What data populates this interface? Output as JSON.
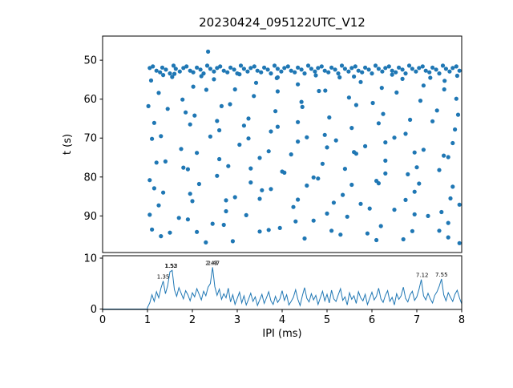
{
  "figure": {
    "title": "20230424_095122UTC_V12",
    "accent_color": "#1f77b4",
    "background_color": "#ffffff"
  },
  "chart_data": [
    {
      "type": "scatter",
      "title": "20230424_095122UTC_V12",
      "xlabel": "",
      "ylabel": "t (s)",
      "xlim": [
        0,
        8
      ],
      "ylim": [
        99.4,
        43.8
      ],
      "y_axis_inverted": true,
      "yticks": [
        50,
        60,
        70,
        80,
        90
      ],
      "xticks": [
        0,
        1,
        2,
        3,
        4,
        5,
        6,
        7,
        8
      ],
      "grid": false,
      "marker_color": "#1f77b4",
      "x": [
        1.05,
        1.12,
        1.2,
        1.28,
        1.33,
        1.41,
        1.5,
        1.58,
        1.63,
        1.72,
        1.8,
        1.87,
        1.95,
        2.02,
        2.1,
        2.18,
        2.25,
        2.33,
        2.4,
        2.48,
        2.55,
        2.62,
        2.7,
        2.78,
        2.85,
        2.93,
        3.0,
        3.08,
        3.15,
        3.23,
        3.3,
        3.38,
        3.45,
        3.53,
        3.6,
        3.68,
        3.75,
        3.83,
        3.9,
        3.98,
        4.05,
        4.13,
        4.2,
        4.28,
        4.35,
        4.43,
        4.5,
        4.58,
        4.65,
        4.73,
        4.8,
        4.88,
        4.95,
        5.03,
        5.1,
        5.18,
        5.25,
        5.33,
        5.4,
        5.48,
        5.55,
        5.63,
        5.7,
        5.78,
        5.85,
        5.93,
        6.0,
        6.08,
        6.15,
        6.23,
        6.3,
        6.38,
        6.45,
        6.53,
        6.6,
        6.68,
        6.75,
        6.83,
        6.9,
        6.98,
        7.05,
        7.13,
        7.2,
        7.28,
        7.35,
        7.43,
        7.5,
        7.58,
        7.65,
        7.73,
        7.8,
        7.88,
        7.95,
        1.08,
        1.55,
        2.02,
        2.48,
        2.95,
        3.42,
        3.88,
        4.35,
        4.82,
        5.28,
        5.75,
        6.22,
        6.68,
        7.15,
        7.62,
        1.25,
        1.78,
        2.31,
        2.84,
        3.37,
        3.9,
        4.43,
        4.96,
        5.49,
        6.02,
        6.55,
        7.08,
        7.61,
        7.88,
        1.02,
        1.45,
        2.05,
        2.65,
        3.25,
        3.85,
        4.45,
        5.05,
        5.65,
        6.25,
        6.85,
        7.45,
        7.92,
        1.15,
        1.85,
        2.55,
        3.15,
        3.75,
        4.35,
        4.95,
        5.55,
        6.15,
        6.75,
        7.35,
        7.85,
        1.3,
        1.95,
        2.6,
        3.25,
        3.9,
        4.55,
        5.2,
        5.85,
        6.5,
        7.15,
        7.8,
        1.1,
        1.75,
        2.4,
        3.05,
        3.7,
        4.35,
        5.0,
        5.65,
        6.3,
        6.95,
        7.6,
        1.4,
        2.1,
        2.8,
        3.5,
        4.2,
        4.9,
        5.6,
        6.3,
        7.0,
        7.7,
        1.2,
        1.9,
        2.6,
        3.3,
        4.0,
        4.7,
        5.4,
        6.1,
        6.8,
        7.5,
        1.05,
        1.8,
        2.55,
        3.3,
        4.05,
        4.8,
        5.55,
        6.3,
        7.05,
        7.8,
        1.35,
        2.15,
        2.95,
        3.75,
        4.55,
        5.35,
        6.15,
        6.95,
        7.75,
        1.15,
        1.95,
        2.75,
        3.55,
        4.35,
        5.15,
        5.95,
        6.75,
        7.55,
        1.25,
        2.0,
        2.75,
        3.5,
        4.25,
        5.0,
        5.75,
        6.5,
        7.25,
        7.95,
        1.05,
        1.7,
        2.45,
        3.2,
        3.95,
        4.7,
        5.45,
        6.2,
        6.95,
        7.7,
        1.1,
        1.9,
        2.7,
        3.5,
        4.3,
        5.1,
        5.9,
        6.7,
        7.5,
        1.3,
        2.1,
        2.9,
        3.7,
        4.5,
        5.3,
        6.1,
        6.9,
        7.7,
        7.95,
        1.5,
        2.3,
        1.35,
        2.2,
        3.05,
        3.9,
        4.75,
        5.6,
        6.45,
        7.3,
        7.9,
        1.6,
        2.35
      ],
      "t": [
        52.0,
        51.6,
        52.7,
        53.1,
        51.9,
        52.4,
        53.4,
        51.4,
        52.2,
        52.9,
        52.0,
        51.6,
        52.7,
        53.1,
        51.9,
        52.4,
        53.4,
        51.4,
        52.2,
        52.9,
        52.0,
        51.6,
        52.7,
        53.1,
        51.9,
        52.4,
        53.4,
        51.4,
        52.2,
        52.9,
        52.0,
        51.6,
        52.7,
        53.1,
        51.9,
        52.4,
        53.4,
        51.4,
        52.2,
        52.9,
        52.0,
        51.6,
        52.7,
        53.1,
        51.9,
        52.4,
        53.4,
        51.4,
        52.2,
        52.9,
        52.0,
        51.6,
        52.7,
        53.1,
        51.9,
        52.4,
        53.4,
        51.4,
        52.2,
        52.9,
        52.0,
        51.6,
        52.7,
        53.1,
        51.9,
        52.4,
        53.4,
        51.4,
        52.2,
        52.9,
        52.0,
        51.6,
        52.7,
        53.1,
        51.9,
        52.4,
        53.4,
        51.4,
        52.2,
        52.9,
        52.0,
        51.6,
        52.7,
        53.1,
        51.9,
        52.4,
        53.4,
        51.4,
        52.2,
        52.9,
        52.0,
        51.6,
        52.7,
        55.2,
        54.3,
        56.8,
        54.9,
        57.5,
        55.8,
        54.6,
        56.2,
        57.9,
        54.4,
        55.6,
        57.1,
        54.8,
        56.5,
        55.3,
        58.4,
        60.1,
        57.6,
        61.3,
        59.2,
        58.0,
        60.7,
        57.8,
        59.6,
        61.0,
        58.3,
        60.4,
        57.5,
        59.9,
        61.8,
        62.5,
        64.2,
        61.8,
        65.0,
        63.1,
        62.0,
        64.7,
        61.5,
        63.8,
        65.3,
        62.9,
        64.0,
        66.1,
        63.4,
        65.6,
        66.8,
        68.3,
        65.9,
        69.2,
        67.4,
        66.2,
        68.9,
        65.7,
        67.8,
        69.5,
        66.5,
        68.0,
        70.1,
        67.1,
        69.8,
        70.6,
        72.1,
        69.9,
        73.0,
        71.3,
        70.2,
        72.8,
        69.6,
        71.7,
        73.4,
        70.9,
        72.4,
        74.0,
        71.1,
        73.7,
        74.5,
        76.0,
        73.8,
        77.2,
        75.1,
        74.2,
        76.6,
        73.6,
        75.8,
        77.5,
        74.9,
        76.3,
        78.0,
        75.4,
        77.8,
        78.6,
        80.1,
        77.9,
        81.0,
        79.3,
        78.2,
        80.8,
        77.6,
        79.7,
        81.4,
        78.9,
        80.4,
        82.0,
        79.1,
        81.7,
        82.5,
        84.0,
        81.8,
        85.2,
        83.1,
        82.2,
        84.6,
        81.6,
        83.8,
        85.5,
        82.9,
        84.3,
        86.0,
        83.4,
        85.8,
        86.6,
        88.1,
        85.9,
        89.0,
        87.3,
        86.2,
        88.8,
        85.6,
        87.7,
        89.4,
        86.9,
        88.4,
        90.0,
        87.1,
        89.7,
        90.5,
        92.0,
        89.8,
        93.1,
        91.2,
        90.2,
        92.6,
        89.6,
        91.8,
        93.5,
        90.9,
        92.3,
        94.0,
        91.4,
        93.8,
        94.5,
        96.0,
        93.8,
        95.2,
        94.1,
        96.5,
        93.6,
        95.8,
        94.8,
        96.2,
        93.9,
        95.5,
        97.0,
        94.3,
        96.8,
        53.8,
        54.1,
        53.6,
        54.4,
        53.9,
        54.2,
        53.7,
        54.5,
        54.0,
        53.5,
        47.8
      ]
    },
    {
      "type": "line",
      "title": "",
      "xlabel": "IPI (ms)",
      "ylabel": "",
      "xlim": [
        0,
        8
      ],
      "ylim": [
        0,
        10.2
      ],
      "yticks": [
        0,
        10
      ],
      "xticks": [
        0,
        1,
        2,
        3,
        4,
        5,
        6,
        7,
        8
      ],
      "grid": false,
      "line_color": "#1f77b4",
      "baseline_start_x": 0,
      "baseline_value": 0,
      "x0": 1.0,
      "dx": 0.05,
      "y": [
        0.3,
        1.2,
        2.8,
        1.5,
        3.4,
        2.2,
        4.1,
        5.5,
        3.0,
        4.6,
        7.3,
        7.6,
        3.8,
        2.5,
        4.2,
        3.1,
        2.0,
        3.6,
        2.8,
        1.6,
        3.2,
        2.4,
        4.0,
        2.9,
        1.8,
        3.5,
        2.6,
        4.3,
        5.0,
        8.2,
        4.4,
        2.7,
        3.9,
        1.9,
        3.0,
        2.2,
        4.1,
        1.4,
        2.8,
        0.9,
        2.1,
        3.3,
        1.2,
        2.6,
        0.8,
        1.9,
        3.1,
        1.5,
        2.4,
        0.7,
        1.8,
        2.9,
        1.1,
        2.2,
        3.4,
        1.6,
        0.9,
        2.5,
        1.3,
        2.0,
        3.6,
        1.7,
        2.8,
        0.8,
        1.5,
        2.3,
        3.8,
        1.9,
        0.7,
        2.6,
        4.2,
        2.1,
        1.4,
        3.0,
        1.8,
        2.7,
        0.9,
        2.2,
        3.5,
        1.6,
        2.9,
        1.2,
        3.7,
        2.0,
        1.5,
        2.8,
        4.0,
        1.7,
        2.4,
        0.8,
        3.2,
        1.9,
        2.6,
        1.1,
        3.4,
        2.2,
        1.6,
        2.9,
        0.9,
        2.1,
        3.3,
        1.8,
        2.5,
        4.1,
        2.0,
        1.3,
        2.7,
        3.6,
        1.5,
        2.3,
        0.8,
        3.0,
        1.9,
        2.6,
        4.3,
        2.1,
        1.4,
        2.8,
        3.5,
        1.7,
        2.4,
        3.9,
        5.8,
        2.6,
        1.8,
        3.1,
        2.0,
        1.2,
        2.7,
        3.4,
        4.5,
        5.9,
        2.8,
        1.6,
        3.2,
        2.3,
        1.5,
        2.9,
        3.7,
        2.2,
        1.0
      ],
      "annotations": [
        {
          "x": 1.35,
          "y": 5.5,
          "label": "1.35"
        },
        {
          "x": 1.52,
          "y": 7.6,
          "label": "1.52"
        },
        {
          "x": 1.53,
          "y": 7.6,
          "label": "1.53"
        },
        {
          "x": 2.43,
          "y": 8.2,
          "label": "2.43"
        },
        {
          "x": 2.47,
          "y": 8.2,
          "label": "2.47"
        },
        {
          "x": 7.12,
          "y": 5.8,
          "label": "7.12"
        },
        {
          "x": 7.55,
          "y": 5.9,
          "label": "7.55"
        }
      ]
    }
  ]
}
